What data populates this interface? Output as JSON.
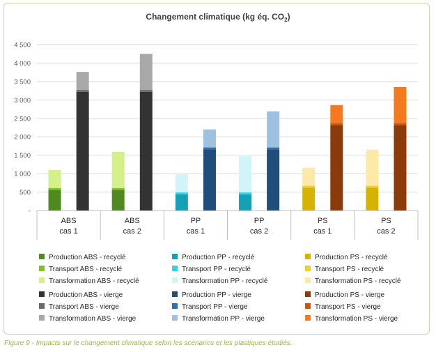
{
  "caption": "Figure 9 - Impacts sur le changement climatique selon les scénarios et les plastiques étudiés.",
  "chart_data": {
    "type": "bar",
    "stacked": true,
    "title": "Changement climatique (kg éq. CO",
    "title_subscript": "2",
    "title_suffix": ")",
    "ylim": [
      0,
      4500
    ],
    "yticks": [
      0,
      500,
      1000,
      1500,
      2000,
      2500,
      3000,
      3500,
      4000,
      4500
    ],
    "ytick_labels": [
      "-",
      "500",
      "1 000",
      "1 500",
      "2 000",
      "2 500",
      "3 000",
      "3 500",
      "4 000",
      "4 500"
    ],
    "grid": true,
    "groups": [
      {
        "line1": "ABS",
        "line2": "cas 1"
      },
      {
        "line1": "ABS",
        "line2": "cas 2"
      },
      {
        "line1": "PP",
        "line2": "cas 1"
      },
      {
        "line1": "PP",
        "line2": "cas 2"
      },
      {
        "line1": "PS",
        "line2": "cas 1"
      },
      {
        "line1": "PS",
        "line2": "cas 2"
      }
    ],
    "bars": [
      {
        "group": 0,
        "slot": 0,
        "segments": [
          {
            "series": "Production ABS - recyclé",
            "value": 560
          },
          {
            "series": "Transport ABS - recyclé",
            "value": 50
          },
          {
            "series": "Transformation ABS - recyclé",
            "value": 490
          }
        ]
      },
      {
        "group": 0,
        "slot": 1,
        "segments": [
          {
            "series": "Production ABS - vierge",
            "value": 3220
          },
          {
            "series": "Transport ABS - vierge",
            "value": 50
          },
          {
            "series": "Transformation ABS - vierge",
            "value": 490
          }
        ]
      },
      {
        "group": 1,
        "slot": 0,
        "segments": [
          {
            "series": "Production ABS - recyclé",
            "value": 560
          },
          {
            "series": "Transport ABS - recyclé",
            "value": 50
          },
          {
            "series": "Transformation ABS - recyclé",
            "value": 980
          }
        ]
      },
      {
        "group": 1,
        "slot": 1,
        "segments": [
          {
            "series": "Production ABS - vierge",
            "value": 3220
          },
          {
            "series": "Transport ABS - vierge",
            "value": 50
          },
          {
            "series": "Transformation ABS - vierge",
            "value": 980
          }
        ]
      },
      {
        "group": 2,
        "slot": 0,
        "segments": [
          {
            "series": "Production PP - recyclé",
            "value": 440
          },
          {
            "series": "Transport PP - recyclé",
            "value": 50
          },
          {
            "series": "Transformation PP - recyclé",
            "value": 490
          }
        ]
      },
      {
        "group": 2,
        "slot": 1,
        "segments": [
          {
            "series": "Production PP - vierge",
            "value": 1660
          },
          {
            "series": "Transport PP - vierge",
            "value": 50
          },
          {
            "series": "Transformation PP - vierge",
            "value": 490
          }
        ]
      },
      {
        "group": 3,
        "slot": 0,
        "segments": [
          {
            "series": "Production PP - recyclé",
            "value": 440
          },
          {
            "series": "Transport PP - recyclé",
            "value": 50
          },
          {
            "series": "Transformation PP - recyclé",
            "value": 980
          }
        ]
      },
      {
        "group": 3,
        "slot": 1,
        "segments": [
          {
            "series": "Production PP - vierge",
            "value": 1660
          },
          {
            "series": "Transport PP - vierge",
            "value": 50
          },
          {
            "series": "Transformation PP - vierge",
            "value": 980
          }
        ]
      },
      {
        "group": 4,
        "slot": 0,
        "segments": [
          {
            "series": "Production PS - recyclé",
            "value": 620
          },
          {
            "series": "Transport PS - recyclé",
            "value": 50
          },
          {
            "series": "Transformation PS - recyclé",
            "value": 490
          }
        ]
      },
      {
        "group": 4,
        "slot": 1,
        "segments": [
          {
            "series": "Production PS - vierge",
            "value": 2320
          },
          {
            "series": "Transport PS - vierge",
            "value": 50
          },
          {
            "series": "Transformation PS - vierge",
            "value": 490
          }
        ]
      },
      {
        "group": 5,
        "slot": 0,
        "segments": [
          {
            "series": "Production PS - recyclé",
            "value": 620
          },
          {
            "series": "Transport PS - recyclé",
            "value": 50
          },
          {
            "series": "Transformation PS - recyclé",
            "value": 980
          }
        ]
      },
      {
        "group": 5,
        "slot": 1,
        "segments": [
          {
            "series": "Production PS - vierge",
            "value": 2320
          },
          {
            "series": "Transport PS - vierge",
            "value": 50
          },
          {
            "series": "Transformation PS - vierge",
            "value": 980
          }
        ]
      }
    ],
    "legend_position": "bottom",
    "legend": [
      [
        [
          {
            "name": "Production ABS - recyclé",
            "color": "#4e8a1e"
          },
          {
            "name": "Transport ABS - recyclé",
            "color": "#7ec224"
          },
          {
            "name": "Transformation ABS - recyclé",
            "color": "#d4f08a"
          }
        ],
        [
          {
            "name": "Production ABS - vierge",
            "color": "#333333"
          },
          {
            "name": "Transport ABS - vierge",
            "color": "#6a6a6a"
          },
          {
            "name": "Transformation ABS - vierge",
            "color": "#a9a9a9"
          }
        ]
      ],
      [
        [
          {
            "name": "Production PP - recyclé",
            "color": "#16a0b8"
          },
          {
            "name": "Transport PP - recyclé",
            "color": "#2ad4ea"
          },
          {
            "name": "Transformation PP - recyclé",
            "color": "#d0f4f8"
          }
        ],
        [
          {
            "name": "Production PP - vierge",
            "color": "#1f4e7a"
          },
          {
            "name": "Transport PP - vierge",
            "color": "#2f6fad"
          },
          {
            "name": "Transformation PP - vierge",
            "color": "#9fc1e1"
          }
        ]
      ],
      [
        [
          {
            "name": "Production PS - recyclé",
            "color": "#d6b300"
          },
          {
            "name": "Transport PS - recyclé",
            "color": "#f2cc2a"
          },
          {
            "name": "Transformation PS - recyclé",
            "color": "#fce9a8"
          }
        ],
        [
          {
            "name": "Production PS - vierge",
            "color": "#8b3a0c"
          },
          {
            "name": "Transport PS - vierge",
            "color": "#c9560f"
          },
          {
            "name": "Transformation PS - vierge",
            "color": "#f37a1f"
          }
        ]
      ]
    ]
  }
}
